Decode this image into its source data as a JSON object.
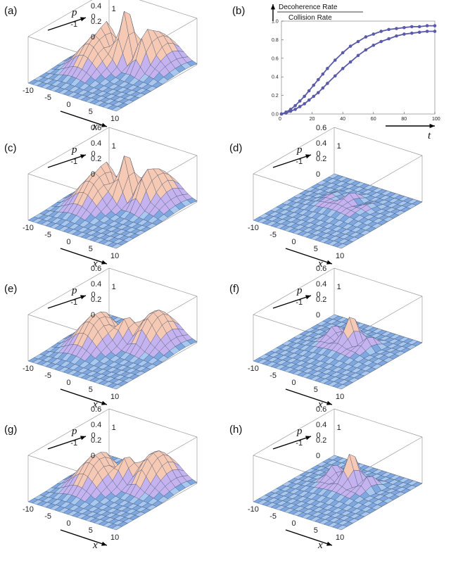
{
  "figure": {
    "panels": [
      {
        "label": "(a)",
        "peaks": [
          {
            "x": -4,
            "p": 0,
            "h": 0.4,
            "type": "gauss"
          },
          {
            "x": 4,
            "p": 2,
            "h": 0.4,
            "type": "gauss"
          },
          {
            "x": 0,
            "p": 1,
            "h": 0.62,
            "type": "interf"
          }
        ]
      },
      {
        "label": "(c)",
        "peaks": [
          {
            "x": -4,
            "p": 0,
            "h": 0.4,
            "type": "gauss"
          },
          {
            "x": 4,
            "p": 2,
            "h": 0.4,
            "type": "gauss"
          },
          {
            "x": 0,
            "p": 1,
            "h": 0.52,
            "type": "interf"
          }
        ]
      },
      {
        "label": "(d)",
        "peaks": [
          {
            "x": 0,
            "p": 0,
            "h": 0.08,
            "type": "flat"
          },
          {
            "x": 0,
            "p": 1,
            "h": 0.12,
            "type": "interf"
          }
        ]
      },
      {
        "label": "(e)",
        "peaks": [
          {
            "x": -4,
            "p": 0,
            "h": 0.4,
            "type": "gauss"
          },
          {
            "x": 4,
            "p": 2,
            "h": 0.4,
            "type": "gauss"
          },
          {
            "x": 0,
            "p": 1,
            "h": 0.22,
            "type": "interf"
          }
        ]
      },
      {
        "label": "(f)",
        "peaks": [
          {
            "x": 0,
            "p": 0,
            "h": 0.08,
            "type": "flat"
          },
          {
            "x": 0,
            "p": 1,
            "h": 0.35,
            "type": "interf"
          }
        ]
      },
      {
        "label": "(g)",
        "peaks": [
          {
            "x": -4,
            "p": 0,
            "h": 0.4,
            "type": "gauss"
          },
          {
            "x": 4,
            "p": 2,
            "h": 0.4,
            "type": "gauss"
          },
          {
            "x": 0,
            "p": 1,
            "h": 0.24,
            "type": "interf"
          }
        ]
      },
      {
        "label": "(h)",
        "peaks": [
          {
            "x": 0,
            "p": 0,
            "h": 0.08,
            "type": "flat"
          },
          {
            "x": 0,
            "p": 1,
            "h": 0.4,
            "type": "interf"
          }
        ]
      }
    ],
    "surface_axes": {
      "z_ticks": [
        "0.6",
        "0.4",
        "0.2",
        "0"
      ],
      "x_ticks": [
        "-10",
        "-5",
        "0",
        "5",
        "10"
      ],
      "p_ticks": [
        "-1",
        "0",
        "1"
      ],
      "x_label": "x",
      "p_label": "p"
    },
    "colors": {
      "surface": "#a9c8f0",
      "surface_dark": "#7fa7e0",
      "mesh": "#3a4a66",
      "peak": "#f6c9b4",
      "lobe": "#c5b3f0",
      "box": "#9a9a9a",
      "curve": "#5a5aa8"
    }
  },
  "chart_data": {
    "type": "line",
    "label": "(b)",
    "ylabel_numerator": "Decoherence Rate",
    "ylabel_denominator": "Collision Rate",
    "xlabel": "t",
    "xlim": [
      0,
      100
    ],
    "ylim": [
      0,
      1.0
    ],
    "x_ticks": [
      "0",
      "20",
      "40",
      "60",
      "80",
      "100"
    ],
    "y_ticks": [
      "0.0",
      "0.2",
      "0.4",
      "0.6",
      "0.8",
      "1.0"
    ],
    "series": [
      {
        "x": [
          0,
          3,
          6,
          9,
          12,
          15,
          18,
          21,
          24,
          27,
          30,
          35,
          40,
          45,
          50,
          55,
          60,
          65,
          70,
          75,
          80,
          85,
          90,
          95,
          100
        ],
        "y": [
          0.0,
          0.02,
          0.05,
          0.09,
          0.14,
          0.19,
          0.25,
          0.31,
          0.37,
          0.43,
          0.49,
          0.58,
          0.66,
          0.73,
          0.78,
          0.83,
          0.86,
          0.89,
          0.91,
          0.92,
          0.93,
          0.94,
          0.94,
          0.95,
          0.95
        ]
      },
      {
        "x": [
          0,
          3,
          6,
          9,
          12,
          15,
          18,
          21,
          24,
          27,
          30,
          35,
          40,
          45,
          50,
          55,
          60,
          65,
          70,
          75,
          80,
          85,
          90,
          95,
          100
        ],
        "y": [
          0.0,
          0.01,
          0.03,
          0.05,
          0.08,
          0.11,
          0.15,
          0.19,
          0.23,
          0.28,
          0.33,
          0.41,
          0.49,
          0.56,
          0.63,
          0.69,
          0.74,
          0.78,
          0.81,
          0.84,
          0.86,
          0.87,
          0.88,
          0.89,
          0.89
        ]
      }
    ]
  }
}
